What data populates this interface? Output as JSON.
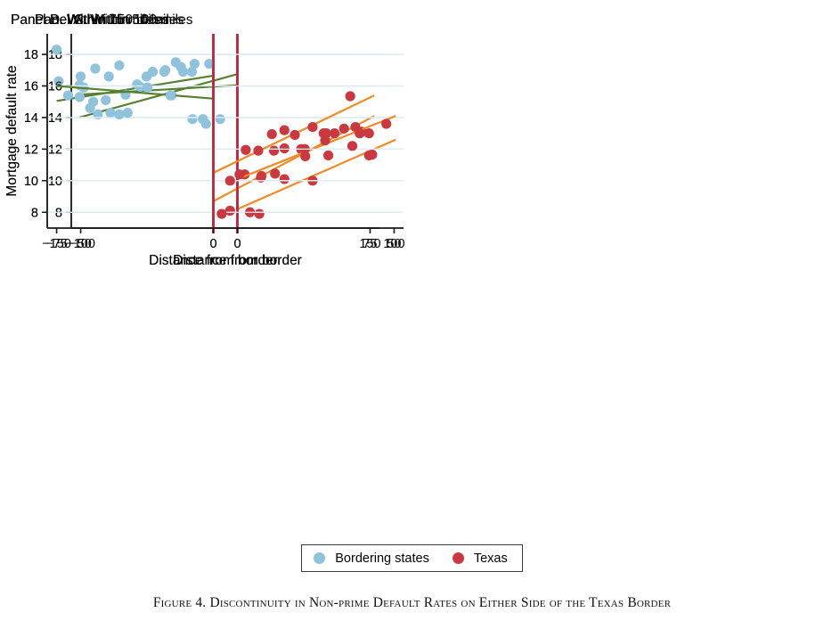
{
  "figure": {
    "caption": "Figure 4. Discontinuity in Non-prime Default Rates on Either Side of the Texas Border"
  },
  "legend": {
    "items": [
      {
        "label": "Bordering states",
        "color": "#8fc2db"
      },
      {
        "label": "Texas",
        "color": "#c9393f"
      }
    ]
  },
  "colors": {
    "bordering_marker": "#8fc2db",
    "texas_marker": "#c9393f",
    "bordering_fit_line": "#55812e",
    "texas_fit_line": "#f08a21",
    "border_vline": "#be2239",
    "gridline": "#ddebf5",
    "axis": "#1a1a1a",
    "text": "#000000"
  },
  "chart_data": [
    {
      "type": "scatter",
      "id": "a",
      "title": "Panel A. Within 50 miles",
      "xlabel": "Distance from border",
      "ylabel": "Mortgage default rate",
      "xticks": [
        -50,
        0,
        50
      ],
      "xlim": [
        -53,
        53
      ],
      "yticks": [
        8,
        10,
        12,
        14,
        16,
        18
      ],
      "ylim": [
        7.0,
        19.3
      ],
      "grid": true,
      "series": [
        {
          "name": "Bordering states",
          "points": [
            [
              -46,
              15.0
            ],
            [
              -42,
              15.1
            ],
            [
              -29,
              16.6
            ],
            [
              -18,
              17.2
            ],
            [
              -10,
              13.6
            ]
          ]
        },
        {
          "name": "Texas",
          "points": [
            [
              7,
              7.9
            ],
            [
              15,
              10.1
            ],
            [
              24,
              10.0
            ],
            [
              29,
              11.6
            ],
            [
              42,
              11.6
            ]
          ]
        }
      ],
      "fit_lines": [
        {
          "name": "bordering-fit",
          "x1": -50.5,
          "y1": 14.0,
          "x2": 0,
          "y2": 16.75
        },
        {
          "name": "texas-fit",
          "x1": 0,
          "y1": 8.2,
          "x2": 50.5,
          "y2": 12.6
        }
      ],
      "vline_x": 0
    },
    {
      "type": "scatter",
      "id": "b",
      "title": "Panel B. Within 75 miles",
      "xlabel": "Distance from border",
      "ylabel": "Mortgage default rate",
      "xticks": [
        -75,
        0,
        75
      ],
      "xlim": [
        -79.5,
        79.5
      ],
      "yticks": [
        8,
        10,
        12,
        14,
        16,
        18
      ],
      "ylim": [
        7.0,
        19.3
      ],
      "grid": true,
      "series": [
        {
          "name": "Bordering states",
          "points": [
            [
              -74,
              16.3
            ],
            [
              -64,
              16.05
            ],
            [
              -62,
              15.9
            ],
            [
              -45,
              17.3
            ],
            [
              -42,
              15.45
            ],
            [
              -29,
              16.9
            ],
            [
              -18,
              17.5
            ],
            [
              -10,
              13.9
            ]
          ]
        },
        {
          "name": "Texas",
          "points": [
            [
              8,
              8.1
            ],
            [
              15,
              10.4
            ],
            [
              23,
              10.3
            ],
            [
              29,
              11.9
            ],
            [
              42,
              12.0
            ],
            [
              54,
              13.0
            ],
            [
              68,
              13.4
            ],
            [
              71,
              13.1
            ]
          ]
        }
      ],
      "fit_lines": [
        {
          "name": "bordering-fit",
          "x1": -75,
          "y1": 15.05,
          "x2": 0,
          "y2": 16.65
        },
        {
          "name": "texas-fit",
          "x1": 0,
          "y1": 8.7,
          "x2": 77,
          "y2": 14.1
        }
      ],
      "vline_x": 0
    },
    {
      "type": "scatter",
      "id": "c",
      "title": "Panel C. Within 100 miles",
      "xlabel": "Distance from border",
      "ylabel": "Mortgage default rate",
      "xticks": [
        -100,
        0,
        100
      ],
      "xlim": [
        -106,
        106
      ],
      "yticks": [
        8,
        10,
        12,
        14,
        16,
        18
      ],
      "ylim": [
        7.0,
        19.3
      ],
      "grid": true,
      "series": [
        {
          "name": "Bordering states",
          "points": [
            [
              -100,
              16.6
            ],
            [
              -89,
              14.2
            ],
            [
              -81,
              14.3
            ],
            [
              -64,
              16.1
            ],
            [
              -62,
              15.95
            ],
            [
              -46,
              17.0
            ],
            [
              -42,
              15.4
            ],
            [
              -29,
              16.9
            ],
            [
              -18,
              17.4
            ],
            [
              -11,
              13.9
            ]
          ]
        },
        {
          "name": "Texas",
          "points": [
            [
              8,
              8.0
            ],
            [
              15,
              10.2
            ],
            [
              24,
              10.45
            ],
            [
              30,
              12.05
            ],
            [
              43,
              12.0
            ],
            [
              55,
              13.0
            ],
            [
              68,
              13.3
            ],
            [
              78,
              13.0
            ],
            [
              86,
              11.65
            ],
            [
              95,
              13.6
            ]
          ]
        }
      ],
      "fit_lines": [
        {
          "name": "bordering-fit",
          "x1": -101,
          "y1": 15.45,
          "x2": 0,
          "y2": 16.05
        },
        {
          "name": "texas-fit",
          "x1": 0,
          "y1": 10.1,
          "x2": 101,
          "y2": 14.1
        }
      ],
      "vline_x": 0
    },
    {
      "type": "scatter",
      "id": "d",
      "title": "Panel D. Within 150 miles",
      "xlabel": "Distance from border",
      "ylabel": "Mortgage default rate",
      "xticks": [
        -150,
        0,
        150
      ],
      "xlim": [
        -159,
        159
      ],
      "yticks": [
        8,
        10,
        12,
        14,
        16,
        18
      ],
      "ylim": [
        7.0,
        19.3
      ],
      "grid": true,
      "series": [
        {
          "name": "Bordering states",
          "points": [
            [
              -150,
              18.3
            ],
            [
              -139,
              15.4
            ],
            [
              -128,
              15.3
            ],
            [
              -118,
              14.6
            ],
            [
              -113,
              17.1
            ],
            [
              -100,
              16.6
            ],
            [
              -90,
              14.2
            ],
            [
              -82,
              14.3
            ],
            [
              -63,
              15.9
            ],
            [
              -47,
              16.9
            ],
            [
              -41,
              15.4
            ],
            [
              -29,
              16.9
            ],
            [
              -18,
              17.4
            ],
            [
              -10,
              13.9
            ]
          ]
        },
        {
          "name": "Texas",
          "points": [
            [
              8,
              7.9
            ],
            [
              16,
              10.0
            ],
            [
              25,
              10.4
            ],
            [
              31,
              11.95
            ],
            [
              43,
              11.9
            ],
            [
              56,
              12.95
            ],
            [
              68,
              13.2
            ],
            [
              78,
              12.9
            ],
            [
              88,
              11.55
            ],
            [
              95,
              13.4
            ],
            [
              107,
              12.55
            ],
            [
              116,
              13.0
            ],
            [
              131,
              15.35
            ],
            [
              133,
              12.2
            ],
            [
              149,
              13.0
            ]
          ]
        }
      ],
      "fit_lines": [
        {
          "name": "bordering-fit",
          "x1": -150,
          "y1": 16.0,
          "x2": 0,
          "y2": 15.2
        },
        {
          "name": "texas-fit",
          "x1": 0,
          "y1": 10.5,
          "x2": 154,
          "y2": 15.4
        }
      ],
      "vline_x": 0
    }
  ]
}
